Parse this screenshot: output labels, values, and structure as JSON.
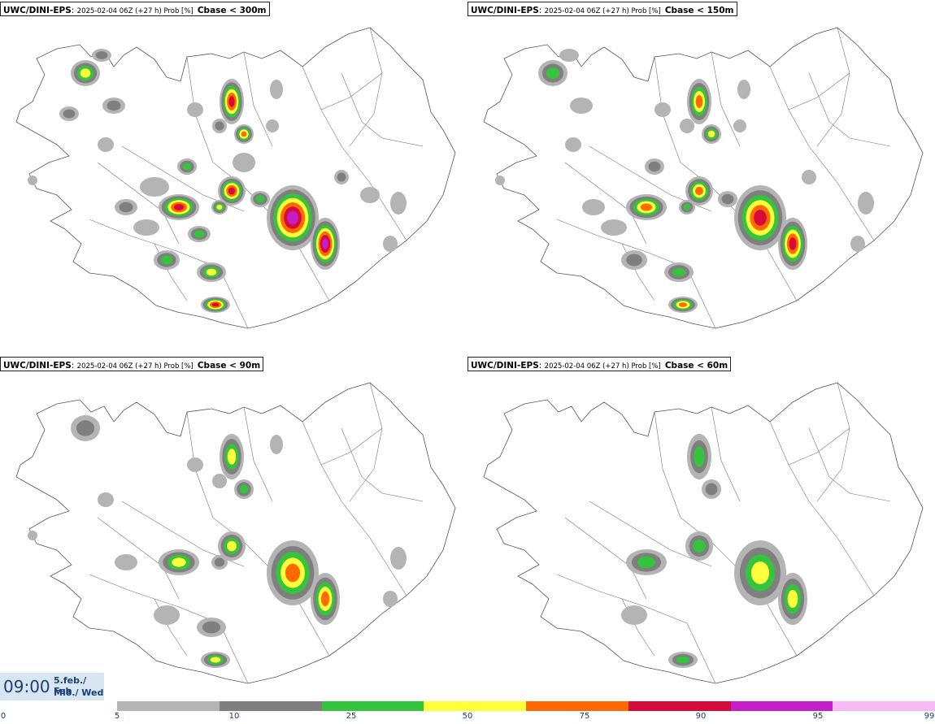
{
  "panels": [
    {
      "model": "UWC/DINI-EPS",
      "run": "2025-02-04 06Z (+27 h) Prob [%]",
      "variable": "Cbase < 300m",
      "level": 4
    },
    {
      "model": "UWC/DINI-EPS",
      "run": "2025-02-04 06Z (+27 h) Prob [%]",
      "variable": "Cbase < 150m",
      "level": 3
    },
    {
      "model": "UWC/DINI-EPS",
      "run": "2025-02-04 06Z (+27 h) Prob [%]",
      "variable": "Cbase < 90m",
      "level": 2
    },
    {
      "model": "UWC/DINI-EPS",
      "run": "2025-02-04 06Z (+27 h) Prob [%]",
      "variable": "Cbase < 60m",
      "level": 1
    }
  ],
  "valid_time": {
    "time": "09:00",
    "date": "5.feb./ Feb",
    "weekday": "Mið./ Wed"
  },
  "colorbar": {
    "ticks": [
      "0",
      "5",
      "10",
      "25",
      "50",
      "75",
      "90",
      "95",
      "99"
    ],
    "colors": [
      "#ffffff",
      "#b4b4b4",
      "#7f7f7f",
      "#35c43d",
      "#ffff3c",
      "#ff6a00",
      "#d60b3b",
      "#c31ec8",
      "#f6b9f3"
    ]
  },
  "map": {
    "region": "Iceland",
    "type": "probability field"
  }
}
